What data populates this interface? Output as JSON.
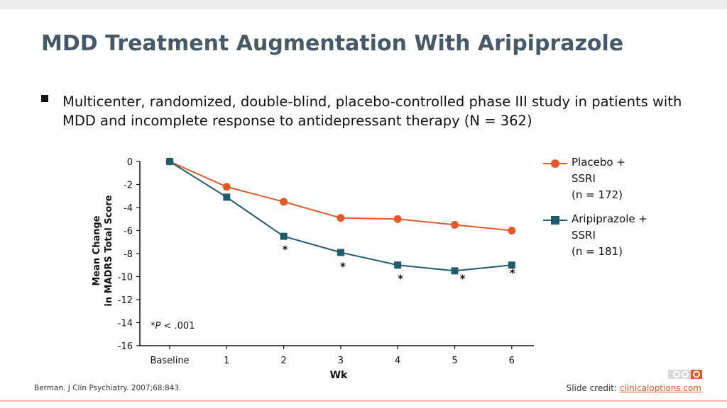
{
  "slide": {
    "title": "MDD Treatment Augmentation With Aripiprazole",
    "bullet": "Multicenter, randomized, double-blind, placebo-controlled phase III study in patients with MDD and incomplete response to antidepressant therapy (N = 362)",
    "citation": "Berman. J Clin Psychiatry. 2007;68:843.",
    "credit_prefix": "Slide credit: ",
    "credit_link": "clinicaloptions.com"
  },
  "colors": {
    "placebo": "#e05a2b",
    "aripiprazole": "#1f5c6e",
    "title": "#475966"
  },
  "chart_data": {
    "type": "line",
    "title": "",
    "xlabel": "Wk",
    "ylabel_line1": "Mean Change",
    "ylabel_line2": "in MADRS Total Score",
    "categories": [
      "Baseline",
      "1",
      "2",
      "3",
      "4",
      "5",
      "6"
    ],
    "yticks": [
      "0",
      "-2",
      "-4",
      "-6",
      "-8",
      "-10",
      "-12",
      "-14",
      "-16"
    ],
    "ylim": [
      -16,
      0
    ],
    "series": [
      {
        "name_lines": [
          "Placebo +",
          "SSRI",
          "(n = 172)"
        ],
        "marker": "circle",
        "values": [
          0,
          -2.2,
          -3.5,
          -4.9,
          -5.0,
          -5.5,
          -6.0
        ]
      },
      {
        "name_lines": [
          "Aripiprazole +",
          "SSRI",
          "(n = 181)"
        ],
        "marker": "square",
        "values": [
          0,
          -3.1,
          -6.5,
          -7.9,
          -9.0,
          -9.5,
          -9.0
        ]
      }
    ],
    "significance_marks": [
      {
        "category": "2",
        "label": "*"
      },
      {
        "category": "3",
        "label": "*"
      },
      {
        "category": "4",
        "label": "*"
      },
      {
        "category": "5",
        "label": "*"
      },
      {
        "category": "6",
        "label": "*"
      }
    ],
    "annotation": {
      "star": "*",
      "italic": "P",
      "rest": " < .001"
    }
  }
}
